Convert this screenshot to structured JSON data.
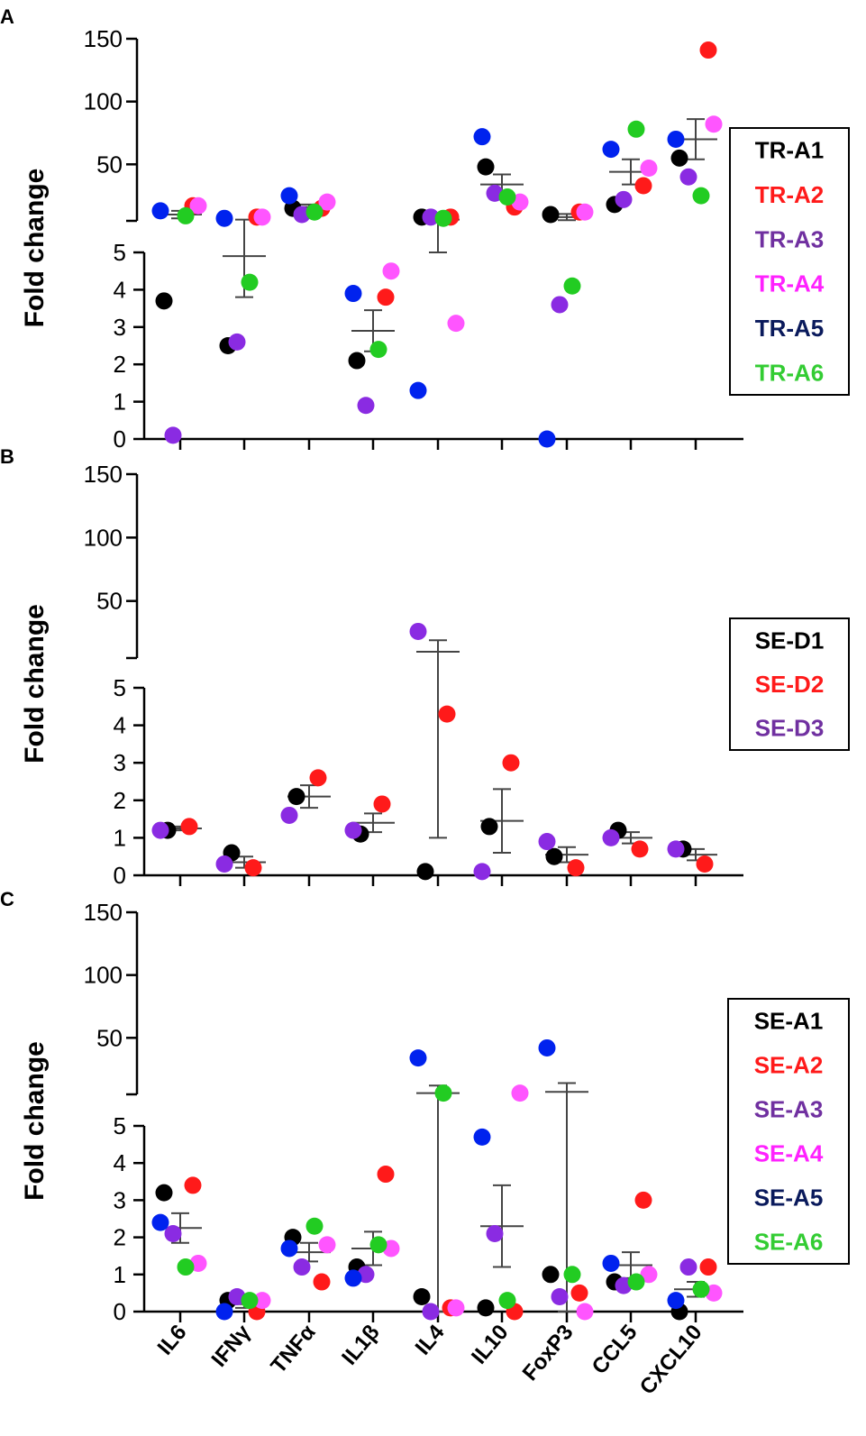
{
  "figure": {
    "categories": [
      "IL6",
      "IFNγ",
      "TNFα",
      "IL1β",
      "IL4",
      "IL10",
      "FoxP3",
      "CCL5",
      "CXCL10"
    ],
    "ylabel": "Fold change",
    "upper_ticks": [
      "150",
      "100",
      "50"
    ],
    "lower_ticks": [
      "5",
      "4",
      "3",
      "2",
      "1",
      "0"
    ]
  },
  "colors": {
    "black": "#000000",
    "red": "#ff1a1a",
    "purple": "#8a2be2",
    "magenta": "#ff55ff",
    "blue": "#0022ee",
    "green": "#22cc22",
    "legend_navy": "#0a1a5c",
    "legend_purple": "#7030a0",
    "legend_magenta": "#ff22ff",
    "legend_green": "#33cc33"
  },
  "chart_data": [
    {
      "panel": "A",
      "type": "scatter",
      "ylabel": "Fold change",
      "categories": [
        "IL6",
        "IFNγ",
        "TNFα",
        "IL1β",
        "IL4",
        "IL10",
        "FoxP3",
        "CCL5",
        "CXCL10"
      ],
      "ylim_lower": [
        0,
        5
      ],
      "ylim_upper": [
        5,
        150
      ],
      "legend": [
        {
          "label": "TR-A1",
          "color": "#000000"
        },
        {
          "label": "TR-A2",
          "color": "#ff1a1a"
        },
        {
          "label": "TR-A3",
          "color": "#7030a0"
        },
        {
          "label": "TR-A4",
          "color": "#ff22ff"
        },
        {
          "label": "TR-A5",
          "color": "#0a1a5c"
        },
        {
          "label": "TR-A6",
          "color": "#33cc33"
        }
      ],
      "series": [
        {
          "name": "TR-A1",
          "color": "#000000",
          "values": [
            3.7,
            2.5,
            15,
            2.1,
            8,
            48,
            10,
            18,
            55
          ]
        },
        {
          "name": "TR-A2",
          "color": "#ff1a1a",
          "values": [
            17,
            8,
            15,
            3.8,
            8,
            16,
            12,
            33,
            141
          ]
        },
        {
          "name": "TR-A3",
          "color": "#8a2be2",
          "values": [
            0.1,
            2.6,
            10,
            0.9,
            8,
            27,
            3.6,
            22,
            40
          ]
        },
        {
          "name": "TR-A4",
          "color": "#ff55ff",
          "values": [
            17,
            8,
            20,
            4.5,
            3.1,
            20,
            12,
            47,
            82
          ]
        },
        {
          "name": "TR-A5",
          "color": "#0022ee",
          "values": [
            13,
            7,
            25,
            3.9,
            1.3,
            72,
            0,
            62,
            70
          ]
        },
        {
          "name": "TR-A6",
          "color": "#22cc22",
          "values": [
            9,
            4.2,
            12,
            2.4,
            7,
            24,
            4.1,
            78,
            25
          ]
        }
      ],
      "mean": [
        10,
        4.9,
        16,
        2.9,
        6,
        34,
        8,
        44,
        70
      ],
      "sem": [
        3,
        1.1,
        2,
        0.55,
        1,
        8,
        2.5,
        10,
        16
      ]
    },
    {
      "panel": "B",
      "type": "scatter",
      "ylabel": "Fold change",
      "categories": [
        "IL6",
        "IFNγ",
        "TNFα",
        "IL1β",
        "IL4",
        "IL10",
        "FoxP3",
        "CCL5",
        "CXCL10"
      ],
      "ylim_lower": [
        0,
        5
      ],
      "ylim_upper": [
        5,
        150
      ],
      "legend": [
        {
          "label": "SE-D1",
          "color": "#000000"
        },
        {
          "label": "SE-D2",
          "color": "#ff1a1a"
        },
        {
          "label": "SE-D3",
          "color": "#7030a0"
        }
      ],
      "series": [
        {
          "name": "SE-D1",
          "color": "#000000",
          "values": [
            1.2,
            0.6,
            2.1,
            1.1,
            0.1,
            1.3,
            0.5,
            1.2,
            0.7
          ]
        },
        {
          "name": "SE-D2",
          "color": "#ff1a1a",
          "values": [
            1.3,
            0.2,
            2.6,
            1.9,
            4.3,
            3.0,
            0.2,
            0.7,
            0.3
          ]
        },
        {
          "name": "SE-D3",
          "color": "#8a2be2",
          "values": [
            1.2,
            0.3,
            1.6,
            1.2,
            26,
            0.1,
            0.9,
            1.0,
            0.7
          ]
        }
      ],
      "mean": [
        1.25,
        0.35,
        2.1,
        1.4,
        10,
        1.45,
        0.55,
        1.0,
        0.55
      ],
      "sem": [
        0.05,
        0.15,
        0.3,
        0.25,
        9,
        0.85,
        0.2,
        0.15,
        0.15
      ]
    },
    {
      "panel": "C",
      "type": "scatter",
      "ylabel": "Fold change",
      "categories": [
        "IL6",
        "IFNγ",
        "TNFα",
        "IL1β",
        "IL4",
        "IL10",
        "FoxP3",
        "CCL5",
        "CXCL10"
      ],
      "ylim_lower": [
        0,
        5
      ],
      "ylim_upper": [
        5,
        150
      ],
      "legend": [
        {
          "label": "SE-A1",
          "color": "#000000"
        },
        {
          "label": "SE-A2",
          "color": "#ff1a1a"
        },
        {
          "label": "SE-A3",
          "color": "#7030a0"
        },
        {
          "label": "SE-A4",
          "color": "#ff22ff"
        },
        {
          "label": "SE-A5",
          "color": "#0a1a5c"
        },
        {
          "label": "SE-A6",
          "color": "#33cc33"
        }
      ],
      "series": [
        {
          "name": "SE-A1",
          "color": "#000000",
          "values": [
            3.2,
            0.3,
            2.0,
            1.2,
            0.4,
            0.1,
            1.0,
            0.8,
            0
          ]
        },
        {
          "name": "SE-A2",
          "color": "#ff1a1a",
          "values": [
            3.4,
            0,
            0.8,
            3.7,
            0.1,
            0,
            0.5,
            3.0,
            1.2
          ]
        },
        {
          "name": "SE-A3",
          "color": "#8a2be2",
          "values": [
            2.1,
            0.4,
            1.2,
            1.0,
            0,
            2.1,
            0.4,
            0.7,
            1.2
          ]
        },
        {
          "name": "SE-A4",
          "color": "#ff55ff",
          "values": [
            1.3,
            0.3,
            1.8,
            1.7,
            0.1,
            6,
            0,
            1.0,
            0.5
          ]
        },
        {
          "name": "SE-A5",
          "color": "#0022ee",
          "values": [
            2.4,
            0,
            1.7,
            0.9,
            34,
            4.7,
            42,
            1.3,
            0.3
          ]
        },
        {
          "name": "SE-A6",
          "color": "#22cc22",
          "values": [
            1.2,
            0.3,
            2.3,
            1.8,
            6,
            0.3,
            1.0,
            0.8,
            0.6
          ]
        }
      ],
      "mean": [
        2.25,
        0.2,
        1.6,
        1.7,
        6,
        2.3,
        7,
        1.25,
        0.6
      ],
      "sem": [
        0.4,
        0.1,
        0.25,
        0.45,
        6,
        1.1,
        7,
        0.35,
        0.2
      ]
    }
  ]
}
